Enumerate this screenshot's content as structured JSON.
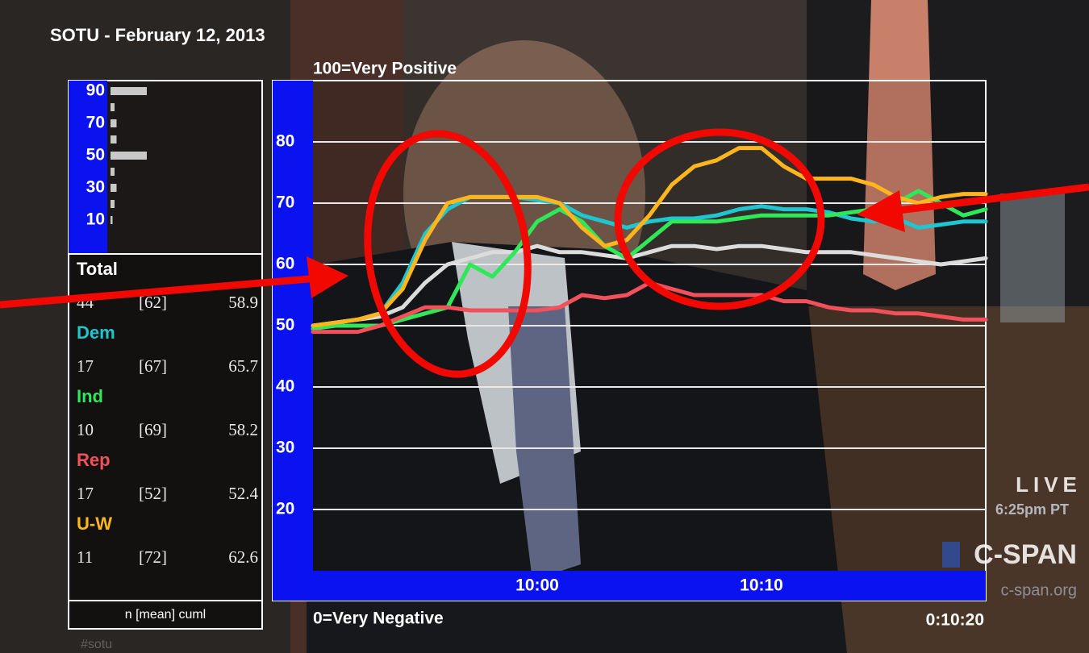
{
  "chart_data": [
    {
      "type": "line",
      "title": "SOTU - February 12, 2013",
      "top_label": "100=Very Positive",
      "bottom_label": "0=Very Negative",
      "elapsed": "0:10:20",
      "x": [
        590,
        591,
        592,
        593,
        594,
        595,
        596,
        597,
        598,
        599,
        600,
        601,
        602,
        603,
        604,
        605,
        606,
        607,
        608,
        609,
        610,
        611,
        612,
        613,
        614,
        615,
        616,
        617,
        618,
        619,
        620
      ],
      "xlim": [
        590,
        620
      ],
      "xticks": [
        {
          "value": 600,
          "label": "10:00"
        },
        {
          "value": 610,
          "label": "10:10"
        }
      ],
      "ylim": [
        10,
        90
      ],
      "yticks": [
        20,
        30,
        40,
        50,
        60,
        70,
        80
      ],
      "grid": true,
      "series": [
        {
          "name": "Total",
          "color": "#dcdcdc",
          "values": [
            50,
            50.5,
            51,
            51.5,
            53,
            57,
            60,
            61,
            62,
            62,
            63,
            62,
            62,
            61.5,
            61,
            62,
            63,
            63,
            62.5,
            63,
            63,
            62.5,
            62,
            62,
            62,
            61.5,
            61,
            60.5,
            60,
            60.5,
            61
          ]
        },
        {
          "name": "Dem",
          "color": "#1fc6cf",
          "values": [
            50,
            50.5,
            51,
            52,
            57,
            65,
            69,
            71,
            71,
            71,
            70.5,
            70,
            68,
            67,
            66,
            67,
            67.5,
            67.5,
            68,
            69,
            69.5,
            69,
            69,
            68.5,
            67.5,
            67,
            67.5,
            66,
            66.5,
            67,
            67
          ]
        },
        {
          "name": "Ind",
          "color": "#2ee85a",
          "values": [
            49.5,
            50,
            50,
            50,
            51,
            52,
            53,
            60,
            58,
            62,
            67,
            69,
            67,
            63,
            61,
            64,
            67,
            67,
            67,
            67.5,
            68,
            68,
            68,
            68,
            68.5,
            69,
            70,
            72,
            70,
            68,
            69
          ]
        },
        {
          "name": "Rep",
          "color": "#f2505a",
          "values": [
            49,
            49,
            49,
            50,
            51.5,
            53,
            53,
            52.5,
            52.5,
            52.5,
            52.5,
            53,
            55,
            54.5,
            55,
            57,
            56,
            55,
            55,
            55,
            55,
            54,
            54,
            53,
            52.5,
            52.5,
            52,
            52,
            51.5,
            51,
            51
          ]
        },
        {
          "name": "U-W",
          "color": "#ffb61e",
          "values": [
            50,
            50.5,
            51,
            52,
            56,
            64,
            70,
            71,
            71,
            71,
            71,
            70,
            66,
            63,
            64,
            68,
            73,
            76,
            77,
            79,
            79,
            76,
            74,
            74,
            74,
            73,
            71,
            70,
            71,
            71.5,
            71.5
          ]
        }
      ]
    },
    {
      "type": "hbar",
      "categories": [
        "90",
        null,
        "70",
        null,
        "50",
        null,
        "30",
        null,
        "10",
        null
      ],
      "values": [
        9,
        1,
        1.5,
        1.5,
        9,
        1,
        1.5,
        1,
        0.5,
        0
      ],
      "color": "#c8c8c8"
    }
  ],
  "stats_table": {
    "rows": [
      {
        "n": 44,
        "mean": "[62]",
        "cuml": 58.9
      },
      {
        "n": 17,
        "mean": "[67]",
        "cuml": 65.7
      },
      {
        "n": 10,
        "mean": "[69]",
        "cuml": 58.2
      },
      {
        "n": 17,
        "mean": "[52]",
        "cuml": 52.4
      },
      {
        "n": 11,
        "mean": "[72]",
        "cuml": 62.6
      }
    ],
    "footer": "n [mean] cuml"
  },
  "broadcast": {
    "live": "LIVE",
    "time": "6:25pm PT",
    "network": "C-SPAN",
    "site": "c-span.org",
    "hashtag": "#sotu"
  }
}
